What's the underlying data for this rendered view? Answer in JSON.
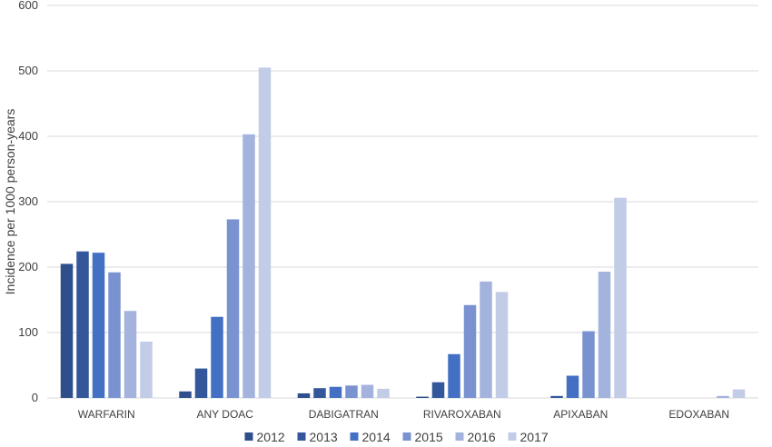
{
  "chart_data": {
    "type": "bar",
    "title": "",
    "xlabel": "",
    "ylabel": "Incidence per 1000 person-years",
    "ylim": [
      0,
      600
    ],
    "yticks": [
      0,
      100,
      200,
      300,
      400,
      500,
      600
    ],
    "grid": true,
    "legend": "bottom",
    "categories": [
      "WARFARIN",
      "ANY DOAC",
      "DABIGATRAN",
      "RIVAROXABAN",
      "APIXABAN",
      "EDOXABAN"
    ],
    "series": [
      {
        "name": "2012",
        "color": "#2f4f8c",
        "values": [
          205,
          10,
          7,
          2,
          0,
          0
        ]
      },
      {
        "name": "2013",
        "color": "#34579c",
        "values": [
          224,
          45,
          15,
          24,
          3,
          0
        ]
      },
      {
        "name": "2014",
        "color": "#4470c4",
        "values": [
          222,
          124,
          17,
          67,
          34,
          0
        ]
      },
      {
        "name": "2015",
        "color": "#7a93d0",
        "values": [
          192,
          273,
          19,
          142,
          102,
          0
        ]
      },
      {
        "name": "2016",
        "color": "#a3b3dd",
        "values": [
          133,
          403,
          20,
          178,
          193,
          3
        ]
      },
      {
        "name": "2017",
        "color": "#c2cce7",
        "values": [
          86,
          505,
          14,
          162,
          306,
          13
        ]
      }
    ]
  }
}
